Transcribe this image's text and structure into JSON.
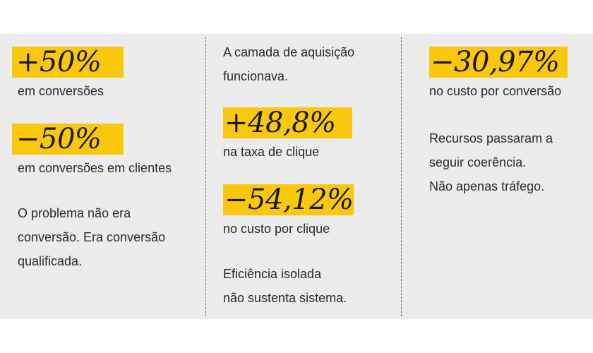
{
  "colors": {
    "band": "#ececec",
    "highlight": "#f9c80e",
    "divider": "#6f6f6f",
    "text": "#2a2a2a"
  },
  "columns": [
    {
      "stats": [
        {
          "value": "+50%",
          "label": "em conversões"
        },
        {
          "value": "−50%",
          "label": "em conversões em clientes"
        }
      ],
      "note_lines": [
        "O problema não era",
        "conversão. Era conversão",
        "qualificada."
      ]
    },
    {
      "intro_lines": [
        "A camada de aquisição",
        "funcionava."
      ],
      "stats": [
        {
          "value": "+48,8%",
          "label": "na taxa de clique"
        },
        {
          "value": "−54,12%",
          "label": "no custo por clique"
        }
      ],
      "note_lines": [
        "Eficiência isolada",
        "não sustenta sistema."
      ]
    },
    {
      "stats": [
        {
          "value": "−30,97%",
          "label": "no custo por conversão"
        }
      ],
      "note_lines": [
        "Recursos passaram a",
        "seguir coerência.",
        "Não apenas tráfego."
      ]
    }
  ]
}
